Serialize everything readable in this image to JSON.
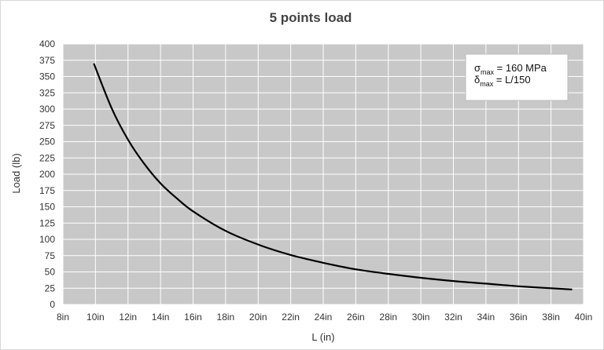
{
  "chart_data": {
    "type": "line",
    "title": "5 points load",
    "xlabel": "L (in)",
    "ylabel": "Load (lb)",
    "xlim": [
      8,
      40
    ],
    "ylim": [
      0,
      400
    ],
    "x_ticks": [
      8,
      10,
      12,
      14,
      16,
      18,
      20,
      22,
      24,
      26,
      28,
      30,
      32,
      34,
      36,
      38,
      40
    ],
    "x_tick_labels": [
      "8in",
      "10in",
      "12in",
      "14in",
      "16in",
      "18in",
      "20in",
      "22in",
      "24in",
      "26in",
      "28in",
      "30in",
      "32in",
      "34in",
      "36in",
      "38in",
      "40in"
    ],
    "y_ticks": [
      0,
      25,
      50,
      75,
      100,
      125,
      150,
      175,
      200,
      225,
      250,
      275,
      300,
      325,
      350,
      375,
      400
    ],
    "grid": true,
    "plot_background": "#c8c8c8",
    "grid_color": "#ffffff",
    "line_color": "#000000",
    "series": [
      {
        "x": [
          9.9,
          11,
          12,
          13,
          14,
          15,
          16,
          18,
          20,
          22,
          24,
          26,
          28,
          30,
          32,
          34,
          36,
          38,
          39.3
        ],
        "values": [
          370,
          301,
          253,
          216,
          186,
          163,
          143,
          113,
          92,
          76,
          64,
          54,
          47,
          41,
          36,
          32,
          28,
          25,
          23
        ]
      }
    ],
    "annotation": {
      "line1_symbol": "σ",
      "line1_sub": "max",
      "line1_text": " = 160 MPa",
      "line2_symbol": "δ",
      "line2_sub": "max",
      "line2_text": " = L/150",
      "placement": "top-right"
    }
  }
}
